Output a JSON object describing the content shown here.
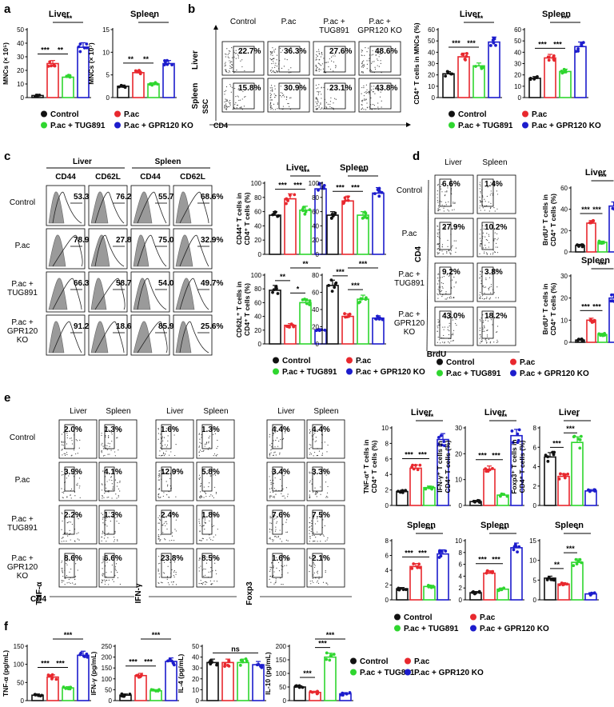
{
  "groups": [
    {
      "name": "Control",
      "color": "#111111"
    },
    {
      "name": "P.ac",
      "color": "#e8282e"
    },
    {
      "name": "P.ac + TUG891",
      "color": "#2fd62f"
    },
    {
      "name": "P.ac + GPR120 KO",
      "color": "#1c1ccc"
    }
  ],
  "panel_labels": [
    "a",
    "b",
    "c",
    "d",
    "e",
    "f"
  ],
  "group_row_labels": [
    "Control",
    "P.ac",
    "P.ac +\nTUG891",
    "P.ac +\nGPR120\nKO"
  ],
  "tissues": [
    "Liver",
    "Spleen"
  ],
  "flow": {
    "b": {
      "columns": [
        "Control",
        "P.ac",
        "P.ac +\nTUG891",
        "P.ac +\nGPR120 KO"
      ],
      "rows": [
        "Liver",
        "Spleen"
      ],
      "x_axis": "CD4",
      "y_axis": "SSC",
      "values": [
        [
          "22.7%",
          "36.3%",
          "27.6%",
          "48.6%"
        ],
        [
          "15.8%",
          "30.9%",
          "23.1%",
          "43.8%"
        ]
      ]
    },
    "c": {
      "headers": [
        "CD44",
        "CD62L",
        "CD44",
        "CD62L"
      ],
      "values": [
        [
          "53.3%",
          "76.2%",
          "55.7%",
          "68.6%"
        ],
        [
          "78.9%",
          "27.8%",
          "75.0%",
          "32.9%"
        ],
        [
          "66.3%",
          "58.7%",
          "54.0%",
          "49.7%"
        ],
        [
          "91.2%",
          "18.6%",
          "85.9%",
          "25.6%"
        ]
      ]
    },
    "d": {
      "x_axis": "BrdU",
      "y_axis": "CD4",
      "values": [
        [
          "6.6%",
          "1.4%"
        ],
        [
          "27.9%",
          "10.2%"
        ],
        [
          "9.2%",
          "3.8%"
        ],
        [
          "43.0%",
          "18.2%"
        ]
      ]
    },
    "e": {
      "y_axes": [
        "TNF-α",
        "IFN-γ",
        "Foxp3"
      ],
      "x_axis": "CD4",
      "values": [
        [
          "2.0%",
          "1.3%",
          "1.6%",
          "1.3%",
          "4.4%",
          "4.4%"
        ],
        [
          "3.9%",
          "4.1%",
          "12.9%",
          "5.8%",
          "3.4%",
          "3.3%"
        ],
        [
          "2.2%",
          "1.3%",
          "2.4%",
          "1.8%",
          "7.6%",
          "7.5%"
        ],
        [
          "8.6%",
          "6.6%",
          "23.8%",
          "8.5%",
          "1.6%",
          "2.1%"
        ]
      ]
    }
  },
  "chart_data": [
    {
      "id": "a-liver",
      "type": "bar",
      "title": "Liver",
      "ylabel": "MNCs (× 10⁵)",
      "ylim": [
        0,
        50
      ],
      "yticks": [
        0,
        10,
        20,
        30,
        40,
        50
      ],
      "values": [
        1.5,
        25,
        15,
        37
      ],
      "sig": [
        [
          "***",
          0,
          1
        ],
        [
          "**",
          1,
          2
        ],
        [
          "***",
          1,
          3
        ]
      ]
    },
    {
      "id": "a-spleen",
      "type": "bar",
      "title": "Spleen",
      "ylabel": "MNCs (× 10⁷)",
      "ylim": [
        0,
        15
      ],
      "yticks": [
        0,
        5,
        10,
        15
      ],
      "values": [
        2.5,
        5.5,
        3.0,
        7.5
      ],
      "sig": [
        [
          "**",
          0,
          1
        ],
        [
          "**",
          1,
          2
        ],
        [
          "*",
          1,
          3
        ]
      ]
    },
    {
      "id": "b-liver",
      "type": "bar",
      "title": "Liver",
      "ylabel": "CD4⁺ T cells in MNCs (%)",
      "ylim": [
        0,
        60
      ],
      "yticks": [
        0,
        10,
        20,
        30,
        40,
        50,
        60
      ],
      "values": [
        21,
        36,
        28,
        49
      ],
      "sig": [
        [
          "***",
          0,
          1
        ],
        [
          "***",
          1,
          2
        ],
        [
          "***",
          1,
          3
        ]
      ]
    },
    {
      "id": "b-spleen",
      "type": "bar",
      "title": "Spleen",
      "ylim": [
        0,
        60
      ],
      "yticks": [
        0,
        10,
        20,
        30,
        40,
        50,
        60
      ],
      "values": [
        17,
        35,
        23,
        45
      ],
      "sig": [
        [
          "***",
          0,
          1
        ],
        [
          "***",
          1,
          2
        ],
        [
          "***",
          1,
          3
        ]
      ]
    },
    {
      "id": "c-liver-cd44",
      "type": "bar",
      "title": "Liver",
      "ylabel": "CD44⁺ T cells in CD4⁺ T cells (%)",
      "ylim": [
        0,
        100
      ],
      "yticks": [
        0,
        20,
        40,
        60,
        80,
        100
      ],
      "values": [
        55,
        78,
        62,
        92
      ],
      "sig": [
        [
          "***",
          0,
          1
        ],
        [
          "***",
          1,
          2
        ],
        [
          "***",
          1,
          3
        ]
      ]
    },
    {
      "id": "c-spleen-cd44",
      "type": "bar",
      "title": "Spleen",
      "ylim": [
        0,
        100
      ],
      "yticks": [
        0,
        20,
        40,
        60,
        80,
        100
      ],
      "values": [
        55,
        75,
        55,
        86
      ],
      "sig": [
        [
          "***",
          0,
          1
        ],
        [
          "***",
          1,
          2
        ],
        [
          "***",
          1,
          3
        ]
      ]
    },
    {
      "id": "c-liver-cd62l",
      "type": "bar",
      "ylabel": "CD62L⁺ T cells in CD4⁺ T cells (%)",
      "ylim": [
        0,
        100
      ],
      "yticks": [
        0,
        20,
        40,
        60,
        80,
        100
      ],
      "values": [
        78,
        27,
        60,
        20
      ],
      "sig": [
        [
          "**",
          0,
          1
        ],
        [
          "*",
          1,
          2
        ],
        [
          "**",
          1,
          3
        ]
      ]
    },
    {
      "id": "c-spleen-cd62l",
      "type": "bar",
      "ylim": [
        0,
        80
      ],
      "yticks": [
        0,
        20,
        40,
        60,
        80
      ],
      "values": [
        68,
        32,
        52,
        30
      ],
      "sig": [
        [
          "***",
          0,
          1
        ],
        [
          "***",
          1,
          2
        ],
        [
          "***",
          1,
          3
        ]
      ]
    },
    {
      "id": "d-liver",
      "type": "bar",
      "title": "Liver",
      "ylabel": "BrdU⁺ T cells in CD4⁺ T cells (%)",
      "ylim": [
        0,
        60
      ],
      "yticks": [
        0,
        20,
        40,
        60
      ],
      "values": [
        6,
        27,
        9,
        43
      ],
      "sig": [
        [
          "***",
          0,
          1
        ],
        [
          "***",
          1,
          2
        ],
        [
          "***",
          1,
          3
        ]
      ]
    },
    {
      "id": "d-spleen",
      "type": "bar",
      "title": "Spleen",
      "ylabel": "BrdU⁺ T cells in CD4⁺ T cells (%)",
      "ylim": [
        0,
        30
      ],
      "yticks": [
        0,
        10,
        20,
        30
      ],
      "values": [
        1,
        10,
        3.5,
        20
      ],
      "sig": [
        [
          "***",
          0,
          1
        ],
        [
          "***",
          1,
          2
        ],
        [
          "***",
          1,
          3
        ]
      ]
    },
    {
      "id": "e-tnf-liver",
      "type": "bar",
      "title": "Liver",
      "ylabel": "TNF-α⁺ T cells in CD4⁺ T cells (%)",
      "ylim": [
        0,
        10
      ],
      "yticks": [
        0,
        2,
        4,
        6,
        8,
        10
      ],
      "values": [
        1.8,
        4.8,
        2.3,
        8.5
      ],
      "sig": [
        [
          "***",
          0,
          1
        ],
        [
          "***",
          1,
          2
        ],
        [
          "***",
          1,
          3
        ]
      ]
    },
    {
      "id": "e-ifn-liver",
      "type": "bar",
      "title": "Liver",
      "ylabel": "IFN-γ⁺ T cells in CD4⁺ T cells (%)",
      "ylim": [
        0,
        30
      ],
      "yticks": [
        0,
        10,
        20,
        30
      ],
      "values": [
        1.5,
        14,
        4,
        27
      ],
      "sig": [
        [
          "***",
          0,
          1
        ],
        [
          "***",
          1,
          2
        ],
        [
          "***",
          1,
          3
        ]
      ]
    },
    {
      "id": "e-foxp3-liver",
      "type": "bar",
      "title": "Liver",
      "ylabel": "Foxp3⁺ T cells in CD4⁺ T cells (%)",
      "ylim": [
        0,
        8
      ],
      "yticks": [
        0,
        2,
        4,
        6,
        8
      ],
      "values": [
        5,
        3,
        6.5,
        1.5
      ],
      "sig": [
        [
          "***",
          0,
          1
        ],
        [
          "***",
          1,
          2
        ],
        [
          "*",
          1,
          3
        ]
      ]
    },
    {
      "id": "e-tnf-spleen",
      "type": "bar",
      "title": "Spleen",
      "ylim": [
        0,
        8
      ],
      "yticks": [
        0,
        2,
        4,
        6,
        8
      ],
      "values": [
        1.5,
        4.5,
        1.8,
        6.2
      ],
      "sig": [
        [
          "***",
          0,
          1
        ],
        [
          "***",
          1,
          2
        ],
        [
          "***",
          1,
          3
        ]
      ]
    },
    {
      "id": "e-ifn-spleen",
      "type": "bar",
      "title": "Spleen",
      "ylim": [
        0,
        10
      ],
      "yticks": [
        0,
        2,
        4,
        6,
        8,
        10
      ],
      "values": [
        1.2,
        4.5,
        1.8,
        8.8
      ],
      "sig": [
        [
          "***",
          0,
          1
        ],
        [
          "***",
          1,
          2
        ],
        [
          "***",
          1,
          3
        ]
      ]
    },
    {
      "id": "e-foxp3-spleen",
      "type": "bar",
      "title": "Spleen",
      "ylim": [
        0,
        15
      ],
      "yticks": [
        0,
        5,
        10,
        15
      ],
      "values": [
        5.5,
        4,
        9.5,
        1.5
      ],
      "sig": [
        [
          "**",
          0,
          1
        ],
        [
          "***",
          1,
          2
        ],
        [
          "*",
          1,
          3
        ]
      ]
    },
    {
      "id": "f-tnf",
      "type": "bar",
      "ylabel": "TNF-α (pg/mL)",
      "ylim": [
        0,
        150
      ],
      "yticks": [
        0,
        50,
        100,
        150
      ],
      "values": [
        15,
        65,
        35,
        125
      ],
      "sig": [
        [
          "***",
          0,
          1
        ],
        [
          "***",
          1,
          2
        ],
        [
          "***",
          1,
          3
        ]
      ]
    },
    {
      "id": "f-ifn",
      "type": "bar",
      "ylabel": "IFN-γ (pg/mL)",
      "ylim": [
        0,
        250
      ],
      "yticks": [
        0,
        50,
        100,
        150,
        200,
        250
      ],
      "values": [
        25,
        115,
        45,
        180
      ],
      "sig": [
        [
          "***",
          0,
          1
        ],
        [
          "***",
          1,
          2
        ],
        [
          "***",
          1,
          3
        ]
      ]
    },
    {
      "id": "f-il4",
      "type": "bar",
      "ylabel": "IL-4 (pg/mL)",
      "ylim": [
        0,
        50
      ],
      "yticks": [
        0,
        10,
        20,
        30,
        40,
        50
      ],
      "values": [
        35,
        35,
        35,
        33
      ],
      "sig": [
        [
          "ns",
          0,
          3
        ]
      ]
    },
    {
      "id": "f-il10",
      "type": "bar",
      "ylabel": "IL-10 (pg/mL)",
      "ylim": [
        0,
        200
      ],
      "yticks": [
        0,
        50,
        100,
        150,
        200
      ],
      "values": [
        50,
        30,
        160,
        25
      ],
      "sig": [
        [
          "***",
          0,
          1
        ],
        [
          "***",
          1,
          2
        ],
        [
          "***",
          1,
          3
        ]
      ]
    }
  ]
}
